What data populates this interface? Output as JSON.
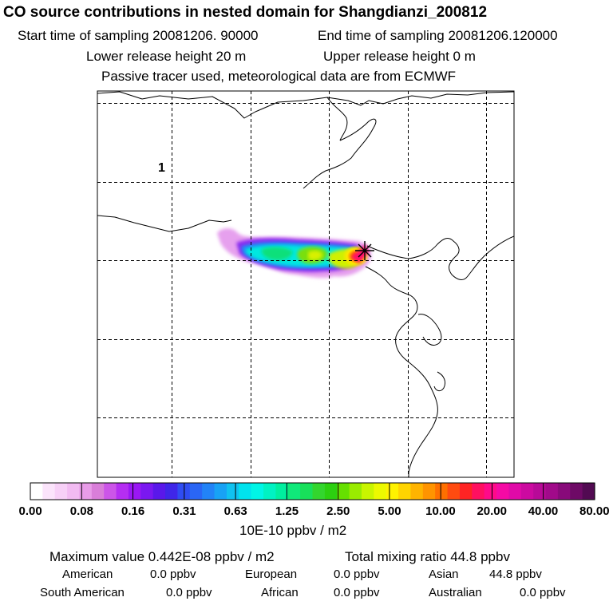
{
  "header": {
    "title": "CO  source contributions in nested domain for Shangdianzi_200812",
    "start_time": "Start time of sampling 20081206. 90000",
    "end_time": "End time of sampling 20081206.120000",
    "lower_release": "Lower release height   20 m",
    "upper_release": "Upper release height    0 m",
    "tracer_note": "Passive tracer used, meteorological data are from ECMWF"
  },
  "chart_data": {
    "type": "heatmap",
    "title": "CO  source contributions in nested domain for Shangdianzi_200812",
    "panel_label": "1",
    "colorbar": {
      "tick_labels": [
        "0.00",
        "0.08",
        "0.16",
        "0.31",
        "0.63",
        "1.25",
        "2.50",
        "5.00",
        "10.00",
        "20.00",
        "40.00",
        "80.00"
      ],
      "unit_label": "10E-10 ppbv / m2",
      "colors": [
        "#ffffff",
        "#fbe4fb",
        "#f7d0f7",
        "#f2bbf2",
        "#e89ce8",
        "#d97ed9",
        "#cc55e8",
        "#b52ef2",
        "#9a17f5",
        "#7a18f0",
        "#5a18ea",
        "#3f26e8",
        "#2f4cf2",
        "#2a66f5",
        "#2283f7",
        "#18a2f5",
        "#10c2f0",
        "#00e3ee",
        "#00f5e6",
        "#00f2c3",
        "#00ef9f",
        "#10e97a",
        "#18e05a",
        "#33d62e",
        "#2cd010",
        "#66e000",
        "#9aec00",
        "#c9f500",
        "#ecf900",
        "#fff200",
        "#ffd400",
        "#ffb400",
        "#ff9400",
        "#ff7000",
        "#ff4b10",
        "#ff2424",
        "#ff1060",
        "#ff0a8a",
        "#f50aa5",
        "#e00aa8",
        "#cc0aa0",
        "#b80a98",
        "#a10a8a",
        "#880a7a",
        "#6e0a66",
        "#520a52"
      ]
    },
    "receptor": "Shangdianzi",
    "max_value": "Maximum value  0.442E-08 ppbv / m2",
    "total_mixing_ratio": "Total mixing ratio       44.8 ppbv",
    "source_contributions": [
      {
        "name": "American",
        "value": "0.0 ppbv"
      },
      {
        "name": "European",
        "value": "0.0 ppbv"
      },
      {
        "name": "Asian",
        "value": "44.8 ppbv"
      },
      {
        "name": "South American",
        "value": "0.0 ppbv"
      },
      {
        "name": "African",
        "value": "0.0 ppbv"
      },
      {
        "name": "Australian",
        "value": "0.0 ppbv"
      }
    ]
  }
}
